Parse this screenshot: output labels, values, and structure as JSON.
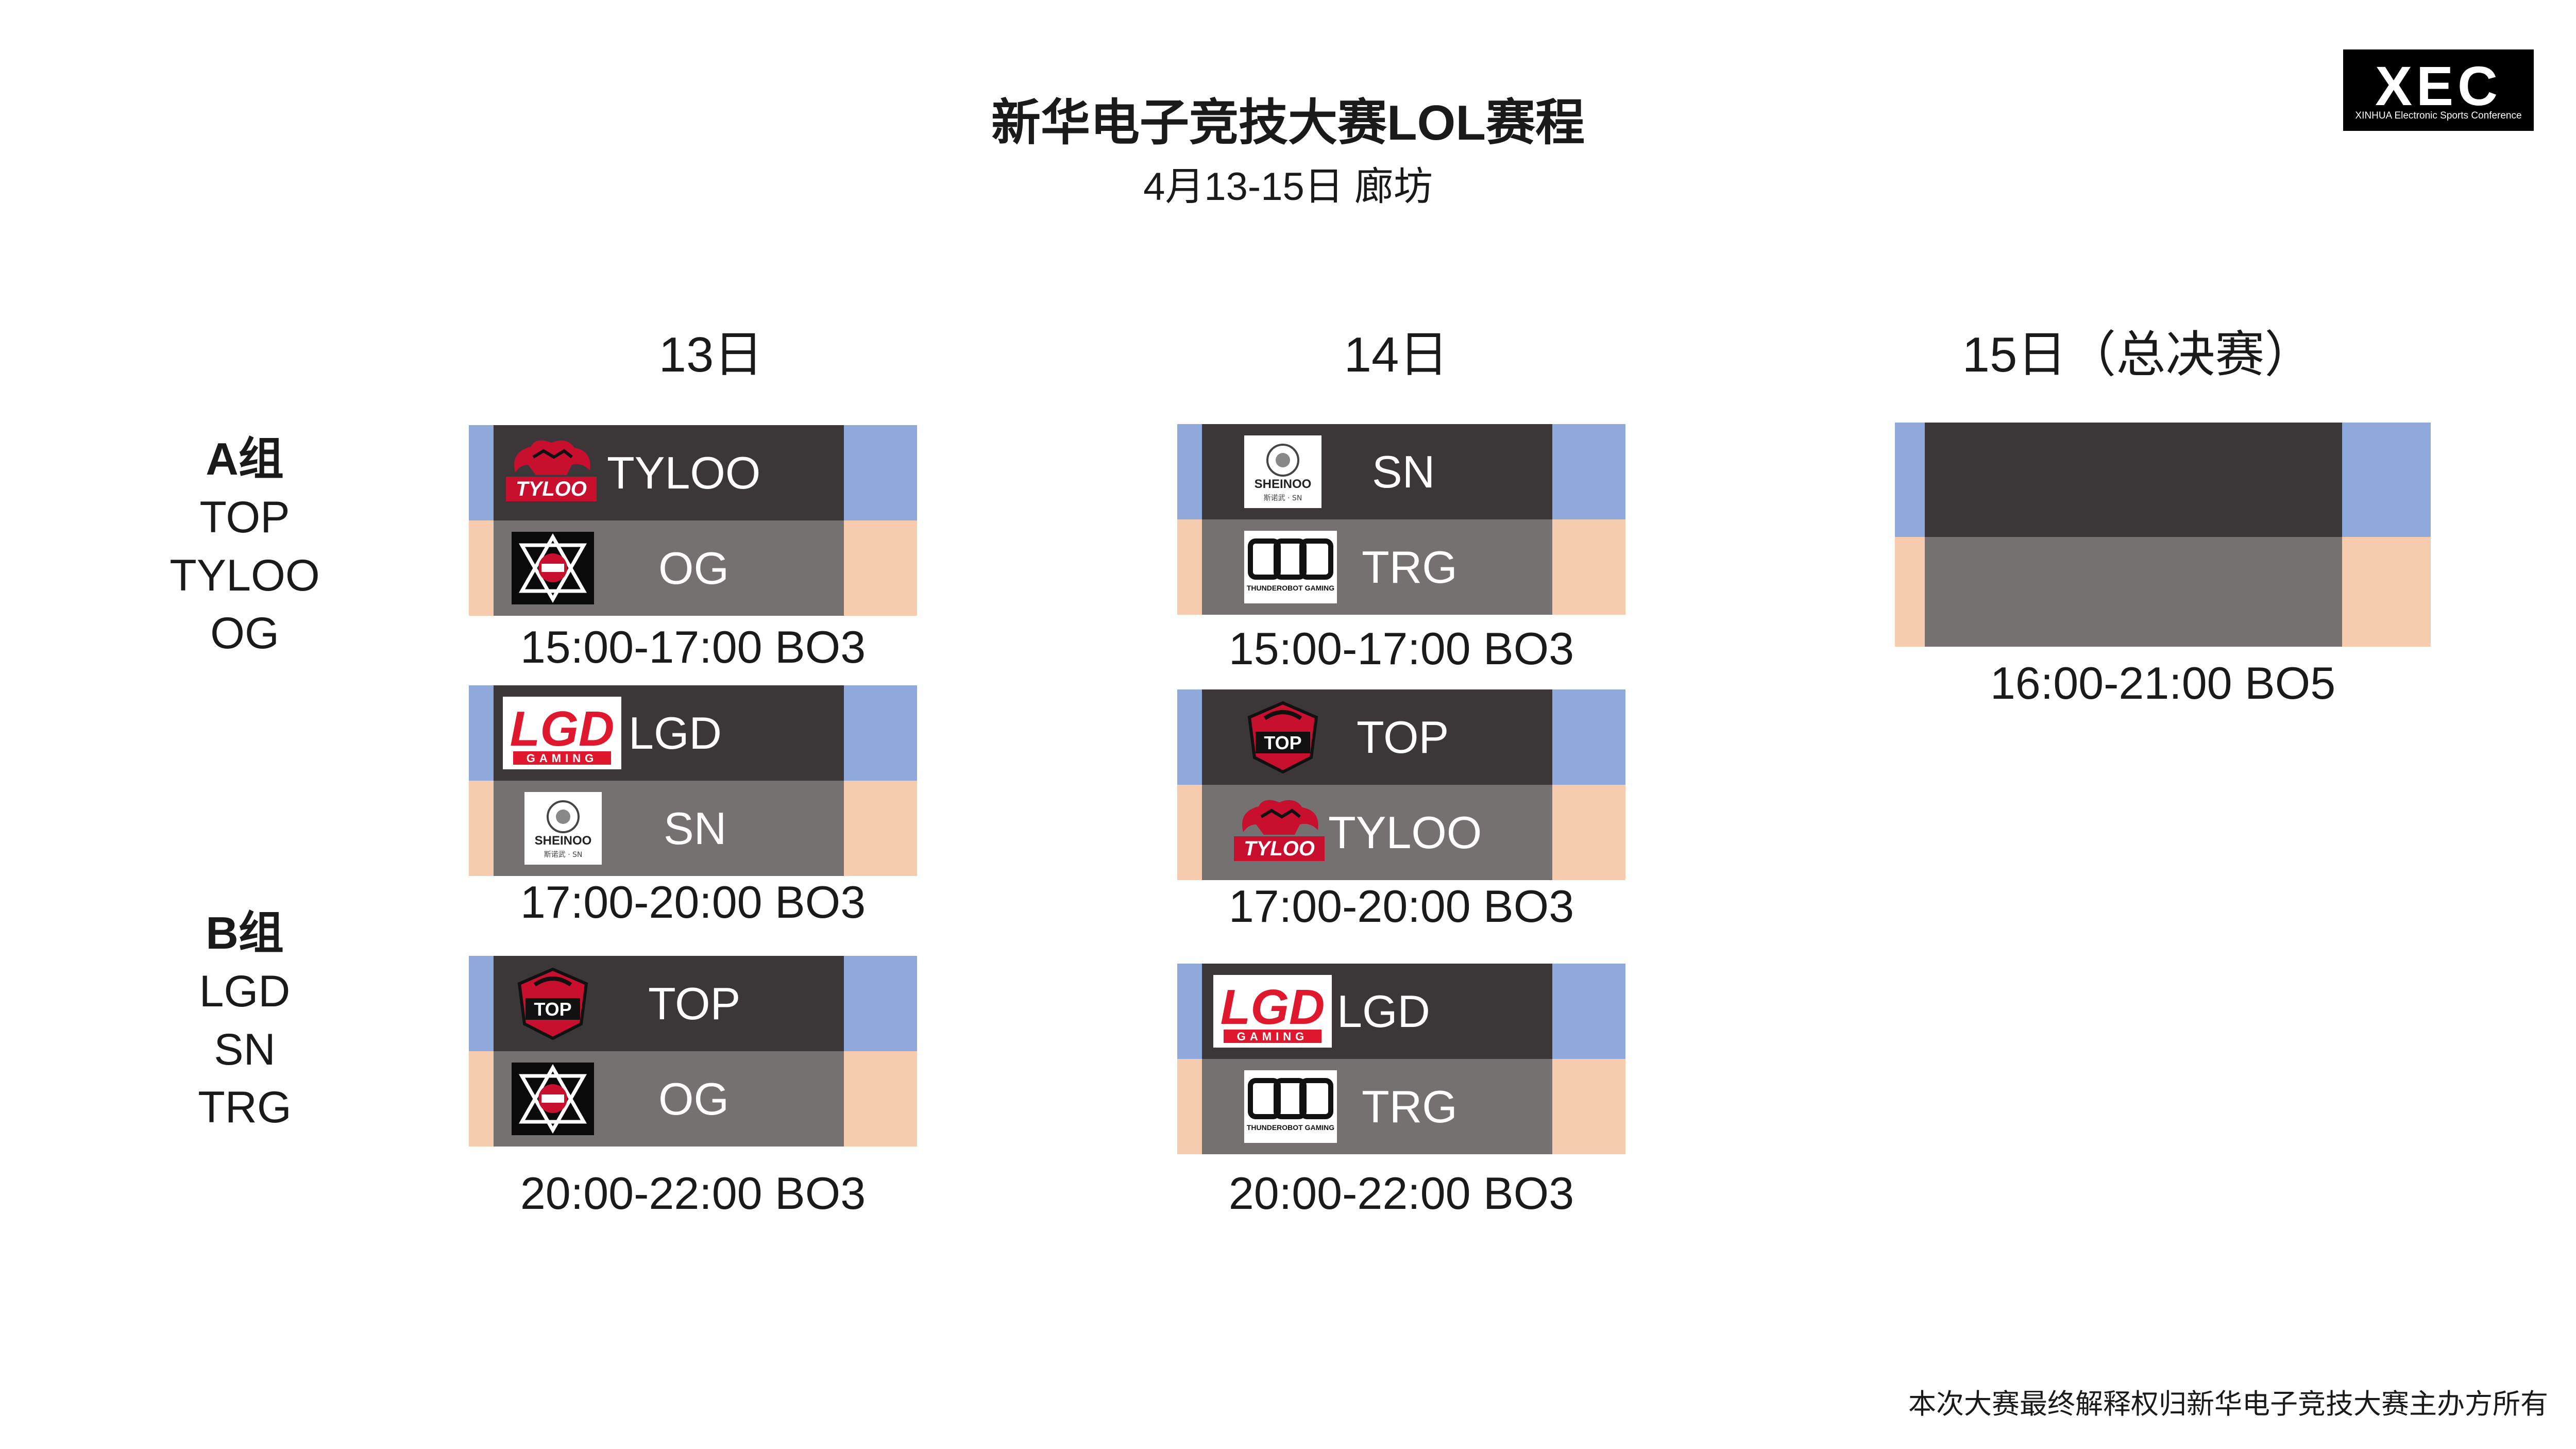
{
  "header": {
    "title": "新华电子竞技大赛LOL赛程",
    "subtitle": "4月13-15日 廊坊"
  },
  "brand_logo": {
    "mark": "XEC",
    "text": "XINHUA Electronic Sports Conference"
  },
  "days": [
    "13日",
    "14日",
    "15日（总决赛）"
  ],
  "groups": [
    {
      "title": "A组",
      "teams": [
        "TOP",
        "TYLOO",
        "OG"
      ]
    },
    {
      "title": "B组",
      "teams": [
        "LGD",
        "SN",
        "TRG"
      ]
    }
  ],
  "schedule": {
    "day13": [
      {
        "team1": "TYLOO",
        "team2": "OG",
        "time": "15:00-17:00  BO3"
      },
      {
        "team1": "LGD",
        "team2": "SN",
        "time": "17:00-20:00  BO3"
      },
      {
        "team1": "TOP",
        "team2": "OG",
        "time": "20:00-22:00  BO3"
      }
    ],
    "day14": [
      {
        "team1": "SN",
        "team2": "TRG",
        "time": "15:00-17:00  BO3"
      },
      {
        "team1": "TOP",
        "team2": "TYLOO",
        "time": "17:00-20:00  BO3"
      },
      {
        "team1": "LGD",
        "team2": "TRG",
        "time": "20:00-22:00  BO3"
      }
    ],
    "day15": [
      {
        "team1": "",
        "team2": "",
        "time": "16:00-21:00  BO5"
      }
    ]
  },
  "team_logos": {
    "tyloo": "TYLOO",
    "top": "TOP",
    "lgd": "LGD",
    "lgd_sub": "GAMING",
    "sn": "SHEINOO",
    "sn_sub": "斯诺武 · SN",
    "trg_sub": "THUNDEROBOT GAMING"
  },
  "colors": {
    "team1_side": "#8fa9dc",
    "team2_side": "#f7ccae",
    "team1_panel": "#3b3637",
    "team2_panel": "#757171",
    "logo_red": "#c8102e"
  },
  "footer": "本次大赛最终解释权归新华电子竞技大赛主办方所有"
}
